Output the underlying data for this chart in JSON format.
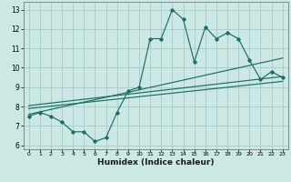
{
  "title": "",
  "xlabel": "Humidex (Indice chaleur)",
  "ylabel": "",
  "bg_color": "#cce8e4",
  "grid_color": "#aacfcc",
  "line_color": "#1a6e64",
  "xlim": [
    -0.5,
    23.5
  ],
  "ylim": [
    5.8,
    13.4
  ],
  "xticks": [
    0,
    1,
    2,
    3,
    4,
    5,
    6,
    7,
    8,
    9,
    10,
    11,
    12,
    13,
    14,
    15,
    16,
    17,
    18,
    19,
    20,
    21,
    22,
    23
  ],
  "yticks": [
    6,
    7,
    8,
    9,
    10,
    11,
    12,
    13
  ],
  "main_line_x": [
    0,
    1,
    2,
    3,
    4,
    5,
    6,
    7,
    8,
    9,
    10,
    11,
    12,
    13,
    14,
    15,
    16,
    17,
    18,
    19,
    20,
    21,
    22,
    23
  ],
  "main_line_y": [
    7.5,
    7.7,
    7.5,
    7.2,
    6.7,
    6.7,
    6.2,
    6.4,
    7.7,
    8.8,
    9.0,
    11.5,
    11.5,
    13.0,
    12.5,
    10.3,
    12.1,
    11.5,
    11.8,
    11.5,
    10.4,
    9.4,
    9.8,
    9.5
  ],
  "trend1_x": [
    0,
    23
  ],
  "trend1_y": [
    7.9,
    9.3
  ],
  "trend2_x": [
    0,
    23
  ],
  "trend2_y": [
    8.05,
    9.55
  ],
  "trend3_x": [
    0,
    23
  ],
  "trend3_y": [
    7.6,
    10.5
  ]
}
